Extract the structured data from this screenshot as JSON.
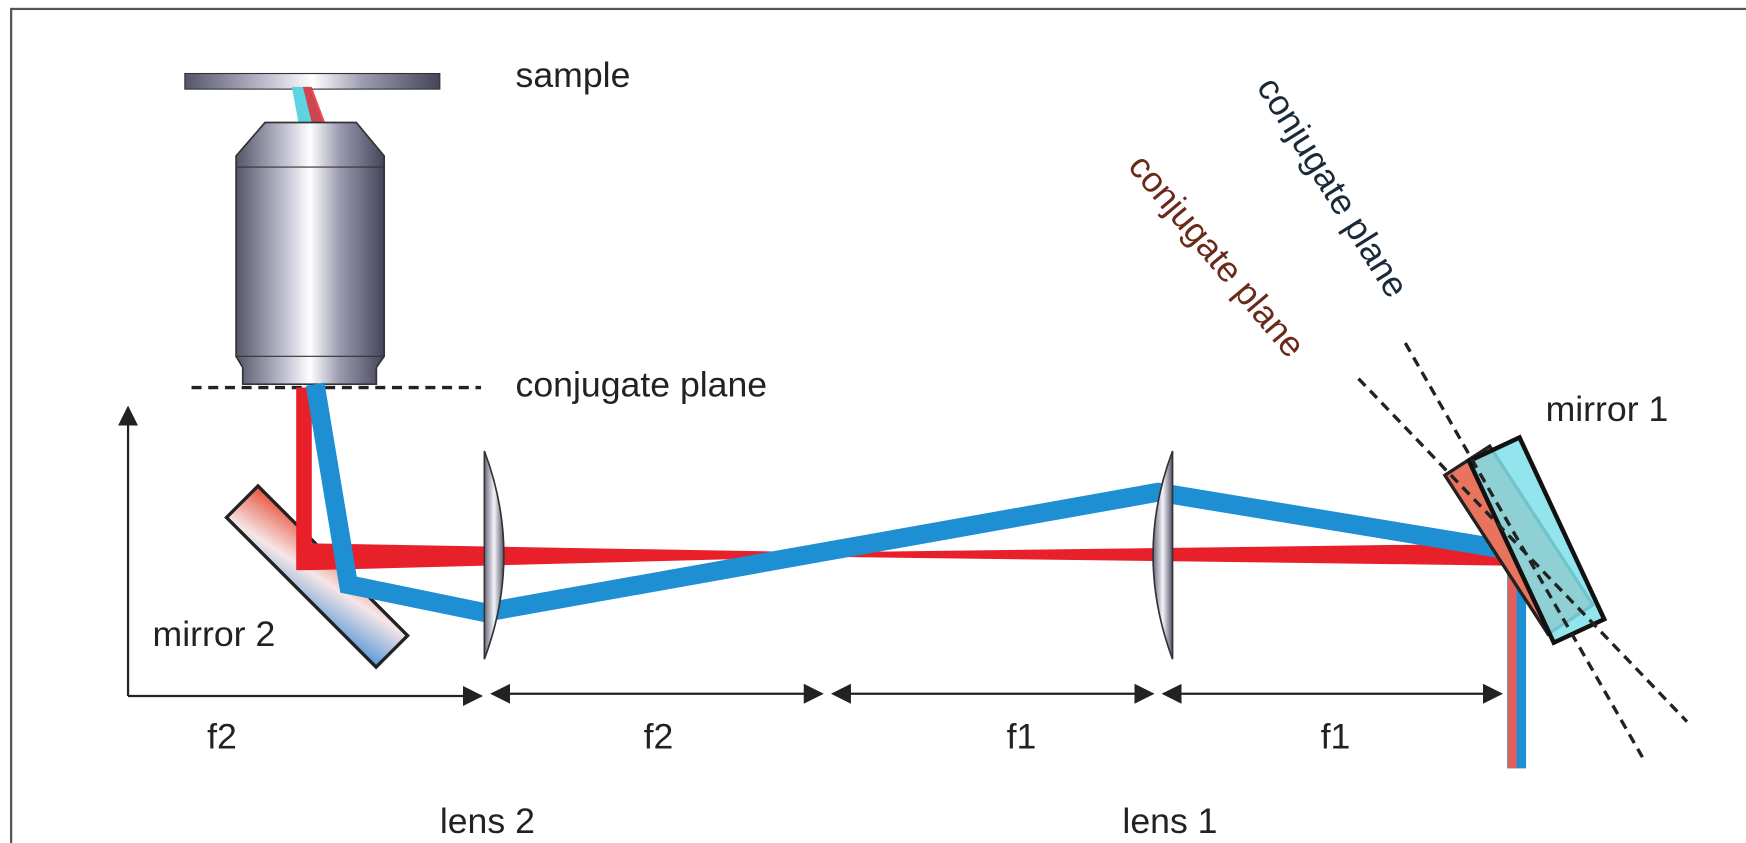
{
  "labels": {
    "sample": "sample",
    "conjugate_plane": "conjugate plane",
    "conjugate_plane_red": "conjugate plane",
    "conjugate_plane_dark": "conjugate plane",
    "mirror_1": "mirror 1",
    "mirror_2": "mirror 2",
    "lens_1": "lens 1",
    "lens_2": "lens 2"
  },
  "distances": [
    "f2",
    "f2",
    "f1",
    "f1"
  ]
}
